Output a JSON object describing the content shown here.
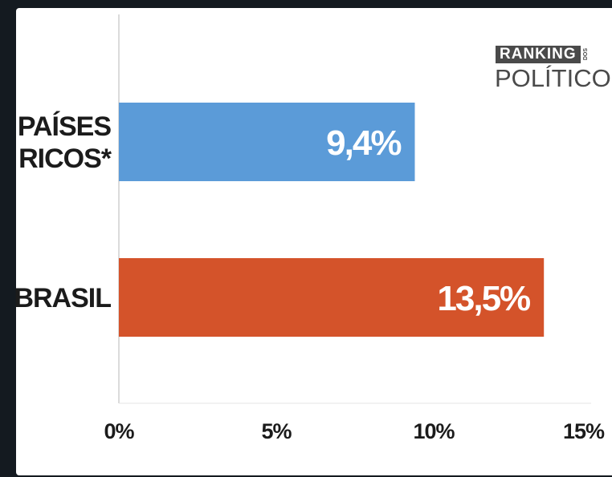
{
  "logo": {
    "line1": "RANKING",
    "small": "DOS",
    "line2": "POLÍTICOS"
  },
  "chart_data": {
    "type": "bar",
    "orientation": "horizontal",
    "categories": [
      [
        "PAÍSES",
        "RICOS*"
      ],
      [
        "BRASIL"
      ]
    ],
    "values": [
      9.4,
      13.5
    ],
    "value_labels": [
      "9,4%",
      "13,5%"
    ],
    "bar_colors": [
      "#5b9bd8",
      "#d4532a"
    ],
    "xlim": [
      0,
      15
    ],
    "ticks": [
      0,
      5,
      10,
      15
    ],
    "tick_labels": [
      "0%",
      "5%",
      "10%",
      "15%"
    ],
    "title": "",
    "xlabel": "",
    "ylabel": "",
    "grid": false,
    "legend": "none"
  }
}
